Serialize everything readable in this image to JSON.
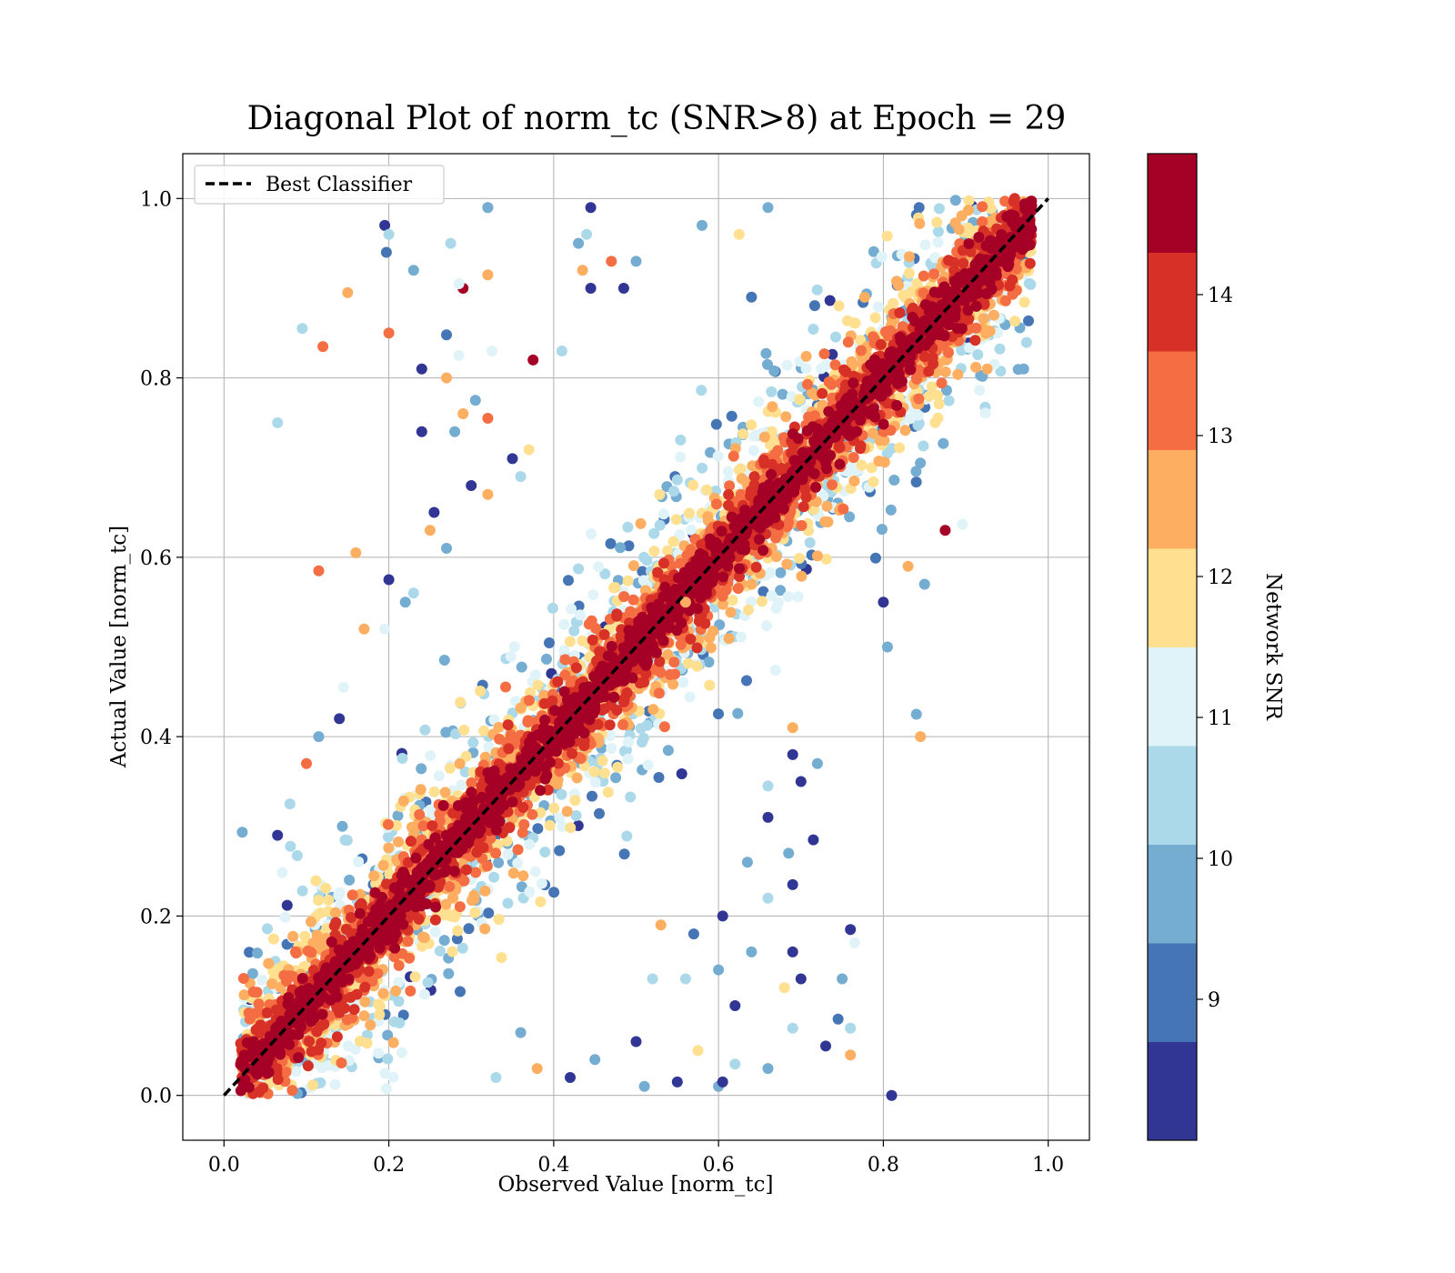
{
  "chart_data": {
    "type": "scatter",
    "title": "Diagonal Plot of norm_tc (SNR>8) at Epoch = 29",
    "xlabel": "Observed Value [norm_tc]",
    "ylabel": "Actual Value [norm_tc]",
    "xlim": [
      -0.05,
      1.05
    ],
    "ylim": [
      -0.05,
      1.05
    ],
    "xticks": [
      "0.0",
      "0.2",
      "0.4",
      "0.6",
      "0.8",
      "1.0"
    ],
    "yticks": [
      "0.0",
      "0.2",
      "0.4",
      "0.6",
      "0.8",
      "1.0"
    ],
    "xtick_values": [
      0.0,
      0.2,
      0.4,
      0.6,
      0.8,
      1.0
    ],
    "ytick_values": [
      0.0,
      0.2,
      0.4,
      0.6,
      0.8,
      1.0
    ],
    "grid": true,
    "legend": {
      "position": "upper-left",
      "entries": [
        "Best Classifier"
      ]
    },
    "reference_line": {
      "name": "Best Classifier",
      "x": [
        0.0,
        1.0
      ],
      "y": [
        0.0,
        1.0
      ],
      "style": "dashed",
      "color": "#000000"
    },
    "colorbar": {
      "label": "Network SNR",
      "range": [
        8,
        15
      ],
      "ticks": [
        "9",
        "10",
        "11",
        "12",
        "13",
        "14"
      ],
      "tick_values": [
        9,
        10,
        11,
        12,
        13,
        14
      ],
      "levels": [
        8,
        8.7,
        9.4,
        10.1,
        10.8,
        11.5,
        12.2,
        12.9,
        13.6,
        14.3,
        15
      ],
      "colors": [
        "#313695",
        "#4575b4",
        "#74add1",
        "#abd9e9",
        "#e0f3f8",
        "#fee090",
        "#fdae61",
        "#f46d43",
        "#d73027",
        "#a50026"
      ]
    },
    "outlier_points": [
      [
        0.195,
        0.97,
        8.3
      ],
      [
        0.2,
        0.96,
        10.4
      ],
      [
        0.197,
        0.94,
        9.2
      ],
      [
        0.23,
        0.92,
        9.9
      ],
      [
        0.275,
        0.95,
        10.6
      ],
      [
        0.29,
        0.9,
        14.8
      ],
      [
        0.32,
        0.99,
        9.6
      ],
      [
        0.32,
        0.99,
        9.6
      ],
      [
        0.15,
        0.895,
        12.3
      ],
      [
        0.285,
        0.905,
        10.9
      ],
      [
        0.32,
        0.915,
        12.3
      ],
      [
        0.095,
        0.855,
        10.4
      ],
      [
        0.2,
        0.85,
        13.4
      ],
      [
        0.12,
        0.835,
        12.9
      ],
      [
        0.27,
        0.848,
        9.3
      ],
      [
        0.24,
        0.81,
        8.4
      ],
      [
        0.285,
        0.825,
        11.2
      ],
      [
        0.325,
        0.83,
        11.3
      ],
      [
        0.065,
        0.75,
        10.6
      ],
      [
        0.24,
        0.74,
        8.3
      ],
      [
        0.27,
        0.8,
        12.2
      ],
      [
        0.29,
        0.76,
        12.6
      ],
      [
        0.28,
        0.74,
        9.6
      ],
      [
        0.32,
        0.755,
        13.0
      ],
      [
        0.305,
        0.775,
        9.6
      ],
      [
        0.375,
        0.82,
        14.8
      ],
      [
        0.41,
        0.83,
        10.6
      ],
      [
        0.445,
        0.99,
        8.3
      ],
      [
        0.44,
        0.96,
        10.7
      ],
      [
        0.43,
        0.95,
        9.4
      ],
      [
        0.485,
        0.9,
        8.3
      ],
      [
        0.435,
        0.92,
        12.2
      ],
      [
        0.445,
        0.9,
        8.3
      ],
      [
        0.47,
        0.93,
        12.9
      ],
      [
        0.5,
        0.93,
        9.6
      ],
      [
        0.58,
        0.97,
        9.6
      ],
      [
        0.625,
        0.96,
        11.8
      ],
      [
        0.64,
        0.89,
        9.2
      ],
      [
        0.66,
        0.99,
        9.4
      ],
      [
        0.115,
        0.585,
        13.0
      ],
      [
        0.16,
        0.605,
        12.8
      ],
      [
        0.2,
        0.575,
        8.3
      ],
      [
        0.17,
        0.52,
        12.2
      ],
      [
        0.195,
        0.52,
        11.4
      ],
      [
        0.145,
        0.455,
        11.3
      ],
      [
        0.14,
        0.42,
        8.6
      ],
      [
        0.115,
        0.4,
        9.9
      ],
      [
        0.1,
        0.37,
        12.9
      ],
      [
        0.08,
        0.325,
        10.4
      ],
      [
        0.065,
        0.29,
        8.4
      ],
      [
        0.25,
        0.63,
        12.6
      ],
      [
        0.255,
        0.65,
        8.3
      ],
      [
        0.23,
        0.56,
        10.7
      ],
      [
        0.22,
        0.55,
        9.6
      ],
      [
        0.27,
        0.61,
        9.6
      ],
      [
        0.3,
        0.68,
        8.4
      ],
      [
        0.32,
        0.67,
        12.3
      ],
      [
        0.35,
        0.71,
        8.4
      ],
      [
        0.37,
        0.72,
        11.8
      ],
      [
        0.36,
        0.69,
        10.4
      ],
      [
        0.51,
        0.01,
        9.6
      ],
      [
        0.55,
        0.015,
        8.3
      ],
      [
        0.6,
        0.01,
        9.9
      ],
      [
        0.575,
        0.05,
        11.7
      ],
      [
        0.62,
        0.035,
        10.4
      ],
      [
        0.605,
        0.015,
        8.3
      ],
      [
        0.66,
        0.03,
        9.6
      ],
      [
        0.76,
        0.045,
        12.3
      ],
      [
        0.73,
        0.055,
        8.4
      ],
      [
        0.745,
        0.085,
        9.2
      ],
      [
        0.76,
        0.075,
        10.4
      ],
      [
        0.69,
        0.075,
        10.4
      ],
      [
        0.69,
        0.16,
        8.3
      ],
      [
        0.75,
        0.13,
        9.6
      ],
      [
        0.76,
        0.185,
        8.3
      ],
      [
        0.765,
        0.17,
        11.2
      ],
      [
        0.685,
        0.27,
        9.6
      ],
      [
        0.715,
        0.285,
        8.4
      ],
      [
        0.81,
        0.0,
        8.3
      ],
      [
        0.84,
        0.425,
        9.6
      ],
      [
        0.845,
        0.4,
        12.2
      ],
      [
        0.805,
        0.5,
        9.6
      ],
      [
        0.8,
        0.55,
        8.4
      ],
      [
        0.85,
        0.57,
        9.6
      ],
      [
        0.83,
        0.59,
        12.6
      ],
      [
        0.875,
        0.63,
        14.8
      ],
      [
        0.6,
        0.14,
        9.6
      ],
      [
        0.56,
        0.13,
        10.4
      ],
      [
        0.62,
        0.1,
        8.3
      ],
      [
        0.68,
        0.12,
        11.6
      ],
      [
        0.7,
        0.13,
        8.4
      ],
      [
        0.64,
        0.16,
        9.6
      ],
      [
        0.605,
        0.2,
        8.4
      ],
      [
        0.57,
        0.18,
        9.2
      ],
      [
        0.53,
        0.19,
        12.2
      ],
      [
        0.52,
        0.13,
        10.6
      ],
      [
        0.66,
        0.22,
        10.4
      ],
      [
        0.69,
        0.235,
        8.4
      ],
      [
        0.635,
        0.26,
        9.6
      ],
      [
        0.66,
        0.31,
        8.3
      ],
      [
        0.56,
        0.55,
        12.3
      ],
      [
        0.7,
        0.35,
        8.3
      ],
      [
        0.72,
        0.37,
        9.6
      ],
      [
        0.69,
        0.41,
        12.6
      ],
      [
        0.69,
        0.38,
        8.3
      ],
      [
        0.66,
        0.345,
        10.4
      ],
      [
        0.5,
        0.06,
        8.3
      ],
      [
        0.45,
        0.04,
        9.6
      ],
      [
        0.38,
        0.03,
        12.2
      ],
      [
        0.42,
        0.02,
        8.4
      ],
      [
        0.33,
        0.02,
        10.6
      ],
      [
        0.36,
        0.07,
        9.9
      ]
    ]
  }
}
